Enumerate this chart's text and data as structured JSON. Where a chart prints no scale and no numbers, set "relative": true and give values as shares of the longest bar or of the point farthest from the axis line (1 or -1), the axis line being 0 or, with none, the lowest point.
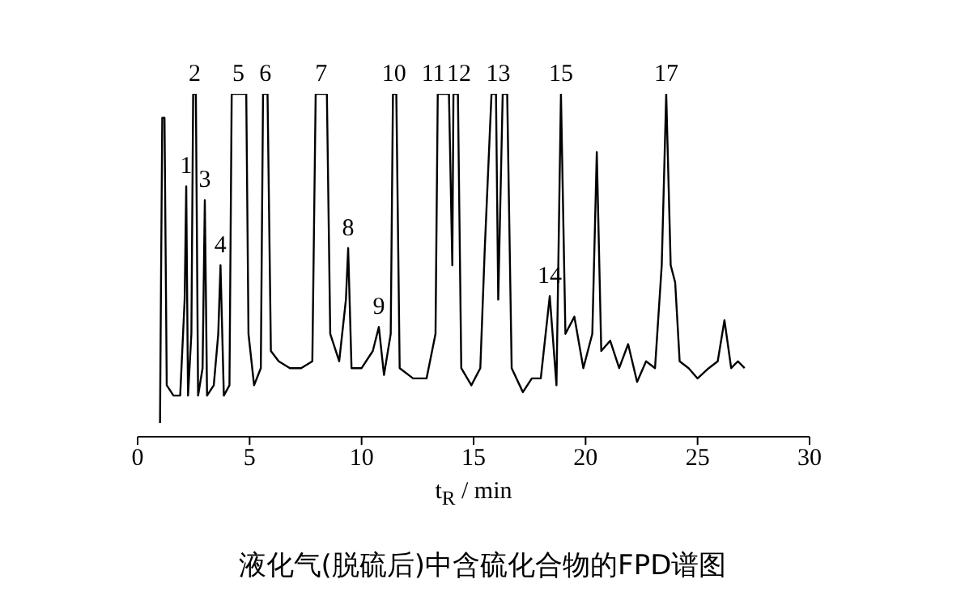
{
  "chart_data": {
    "type": "line",
    "relative": true,
    "xlabel": "t$_{R}$ / min",
    "xlim": [
      0,
      30
    ],
    "xticks": [
      0,
      5,
      10,
      15,
      20,
      25,
      30
    ],
    "series": [
      {
        "color": "#000000",
        "x": [
          1.0,
          1.05,
          1.1,
          1.2,
          1.3,
          1.6,
          1.9,
          2.1,
          2.17,
          2.25,
          2.4,
          2.48,
          2.6,
          2.7,
          2.9,
          3.0,
          3.1,
          3.4,
          3.6,
          3.7,
          3.85,
          4.1,
          4.2,
          4.85,
          4.95,
          5.2,
          5.5,
          5.6,
          5.8,
          5.95,
          6.3,
          6.8,
          7.3,
          7.8,
          7.95,
          8.45,
          8.6,
          9.0,
          9.3,
          9.4,
          9.55,
          10.0,
          10.5,
          10.77,
          11.0,
          11.3,
          11.4,
          11.55,
          11.7,
          12.3,
          12.9,
          13.3,
          13.4,
          13.9,
          14.05,
          14.1,
          14.3,
          14.45,
          14.9,
          15.3,
          15.5,
          15.8,
          16.0,
          16.1,
          16.3,
          16.5,
          16.7,
          17.2,
          17.6,
          18.0,
          18.4,
          18.7,
          18.9,
          19.1,
          19.5,
          19.9,
          20.3,
          20.5,
          20.7,
          21.1,
          21.5,
          21.9,
          22.3,
          22.7,
          23.1,
          23.4,
          23.6,
          23.8,
          24.0,
          24.2,
          24.6,
          25.0,
          25.5,
          25.9,
          26.2,
          26.5,
          26.8,
          27.1
        ],
        "values": [
          0.04,
          0.5,
          0.93,
          0.93,
          0.15,
          0.12,
          0.12,
          0.4,
          0.73,
          0.12,
          0.3,
          1,
          1,
          0.12,
          0.2,
          0.69,
          0.12,
          0.15,
          0.3,
          0.5,
          0.12,
          0.15,
          1,
          1,
          0.3,
          0.15,
          0.2,
          1,
          1,
          0.25,
          0.22,
          0.2,
          0.2,
          0.22,
          1,
          1,
          0.3,
          0.22,
          0.4,
          0.55,
          0.2,
          0.2,
          0.25,
          0.32,
          0.18,
          0.3,
          1,
          1,
          0.2,
          0.17,
          0.17,
          0.3,
          1,
          1,
          0.5,
          1,
          1,
          0.2,
          0.15,
          0.2,
          0.55,
          1,
          1,
          0.4,
          1,
          1,
          0.2,
          0.13,
          0.17,
          0.17,
          0.41,
          0.15,
          1,
          0.3,
          0.35,
          0.2,
          0.3,
          0.83,
          0.25,
          0.28,
          0.2,
          0.27,
          0.16,
          0.22,
          0.2,
          0.5,
          1,
          0.5,
          0.45,
          0.22,
          0.2,
          0.17,
          0.2,
          0.22,
          0.34,
          0.2,
          0.22,
          0.2
        ]
      }
    ],
    "annotations": [
      {
        "text": "1",
        "x": 2.17,
        "y": 0.73
      },
      {
        "text": "2",
        "x": 2.55,
        "y": 1
      },
      {
        "text": "3",
        "x": 3.0,
        "y": 0.69
      },
      {
        "text": "4",
        "x": 3.7,
        "y": 0.5
      },
      {
        "text": "5",
        "x": 4.5,
        "y": 1
      },
      {
        "text": "6",
        "x": 5.7,
        "y": 1
      },
      {
        "text": "7",
        "x": 8.2,
        "y": 1
      },
      {
        "text": "8",
        "x": 9.4,
        "y": 0.55
      },
      {
        "text": "9",
        "x": 10.77,
        "y": 0.32
      },
      {
        "text": "10",
        "x": 11.45,
        "y": 1
      },
      {
        "text": "11",
        "x": 13.2,
        "y": 1
      },
      {
        "text": "12",
        "x": 14.35,
        "y": 1
      },
      {
        "text": "13",
        "x": 16.1,
        "y": 1
      },
      {
        "text": "14",
        "x": 18.4,
        "y": 0.41
      },
      {
        "text": "15",
        "x": 18.9,
        "y": 1
      },
      {
        "text": "17",
        "x": 23.6,
        "y": 1
      },
      "液化气(脱硫后)中含硫化合物的FPD谱图"
    ]
  }
}
